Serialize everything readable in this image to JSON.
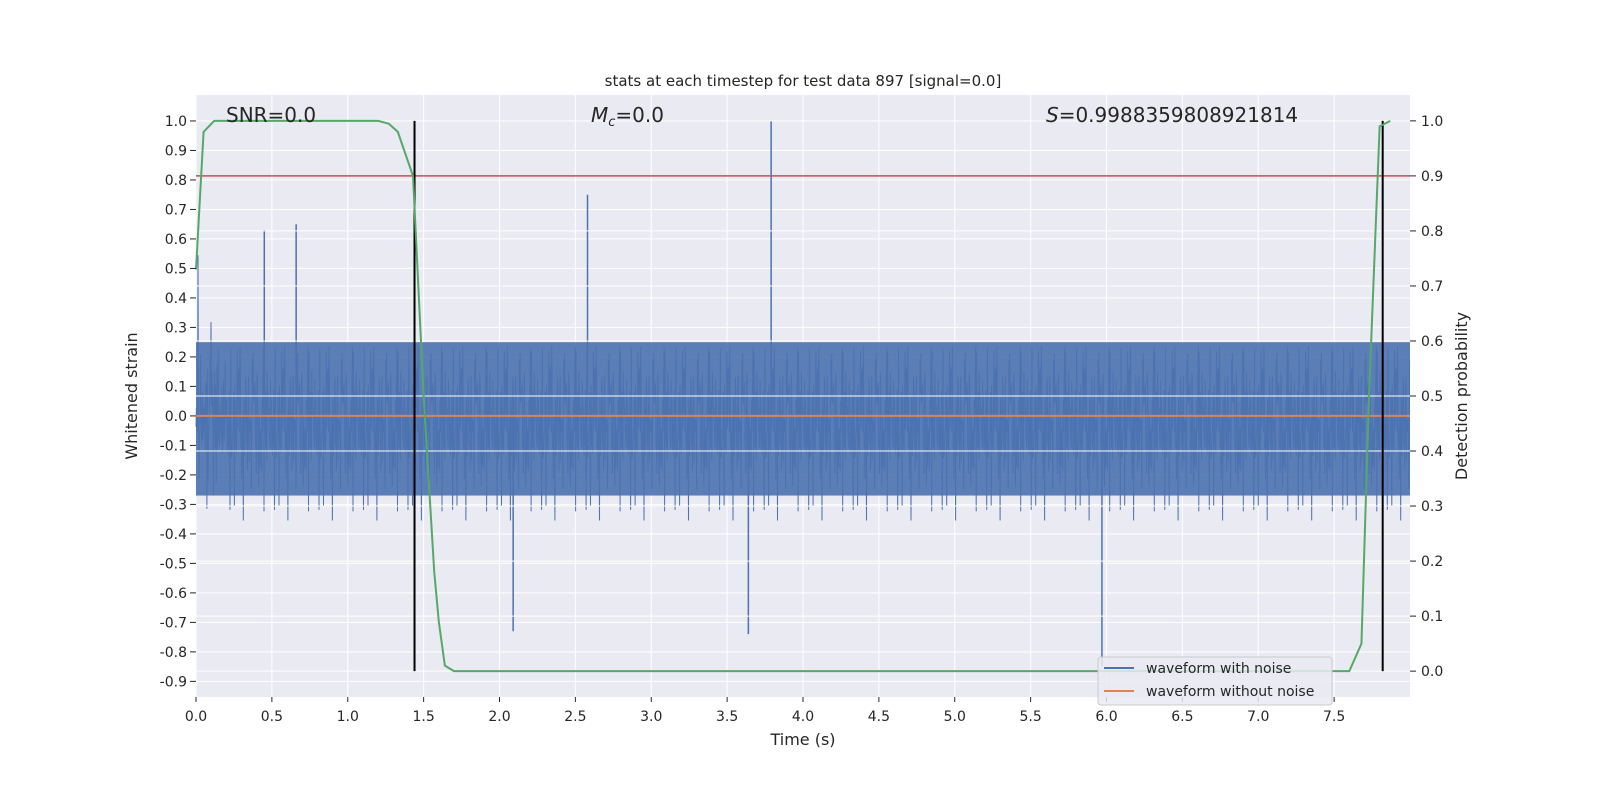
{
  "chart_data": {
    "type": "line",
    "title": "stats at each timestep for test data 897 [signal=0.0]",
    "xlabel": "Time (s)",
    "ylabel": "Whitened strain",
    "y2label": "Detection probability",
    "xlim": [
      0.0,
      8.0
    ],
    "ylim": [
      -0.953,
      1.088
    ],
    "y2lim": [
      -0.047,
      1.047
    ],
    "xticks": [
      "0.0",
      "0.5",
      "1.0",
      "1.5",
      "2.0",
      "2.5",
      "3.0",
      "3.5",
      "4.0",
      "4.5",
      "5.0",
      "5.5",
      "6.0",
      "6.5",
      "7.0",
      "7.5"
    ],
    "yticks": [
      "1.0",
      "0.9",
      "0.8",
      "0.7",
      "0.6",
      "0.5",
      "0.4",
      "0.3",
      "0.2",
      "0.1",
      "0.0",
      "-0.1",
      "-0.2",
      "-0.3",
      "-0.4",
      "-0.5",
      "-0.6",
      "-0.7",
      "-0.8",
      "-0.9"
    ],
    "y2ticks": [
      "1.0",
      "0.9",
      "0.8",
      "0.7",
      "0.6",
      "0.5",
      "0.4",
      "0.3",
      "0.2",
      "0.1",
      "0.0"
    ],
    "grid": true,
    "annotations": {
      "snr": "SNR=0.0",
      "mc_symbol": "M",
      "mc_sub": "c",
      "mc_value": "=0.0",
      "s_symbol": "S",
      "s_value": "=0.9988359808921814"
    },
    "series": [
      {
        "name": "waveform with noise",
        "axis": "left",
        "color": "#4c72b0",
        "kind": "noise",
        "noise": {
          "seed": 897,
          "n": 3000,
          "std": 0.14
        },
        "spikes": [
          [
            3.79,
            1.0
          ],
          [
            5.97,
            -0.85
          ],
          [
            2.58,
            0.75
          ],
          [
            1.44,
            0.83
          ],
          [
            0.45,
            0.63
          ],
          [
            0.66,
            0.65
          ],
          [
            2.09,
            -0.73
          ],
          [
            3.64,
            -0.74
          ]
        ]
      },
      {
        "name": "waveform without noise",
        "axis": "left",
        "color": "#dd8452",
        "x": [
          0.0,
          8.0
        ],
        "y": [
          0.0,
          0.0
        ]
      },
      {
        "name": "detection probability",
        "axis": "right",
        "color": "#55a868",
        "x": [
          0.0,
          0.05,
          0.12,
          1.2,
          1.27,
          1.33,
          1.43,
          1.5,
          1.57,
          1.6,
          1.64,
          1.7,
          7.6,
          7.68,
          7.73,
          7.8,
          7.87
        ],
        "y": [
          0.73,
          0.98,
          1.0,
          1.0,
          0.995,
          0.98,
          0.9,
          0.5,
          0.18,
          0.09,
          0.01,
          0.0,
          0.0,
          0.05,
          0.5,
          0.99,
          1.0
        ]
      },
      {
        "name": "threshold",
        "axis": "right",
        "color": "#c44e52",
        "y": 0.9
      },
      {
        "name": "detection markers",
        "axis": "right",
        "color": "#000000",
        "x": [
          1.44,
          7.82
        ],
        "y": [
          0.0,
          1.0
        ]
      }
    ],
    "legend": {
      "placement": "lower-right",
      "entries": [
        "waveform with noise",
        "waveform without noise"
      ]
    }
  }
}
